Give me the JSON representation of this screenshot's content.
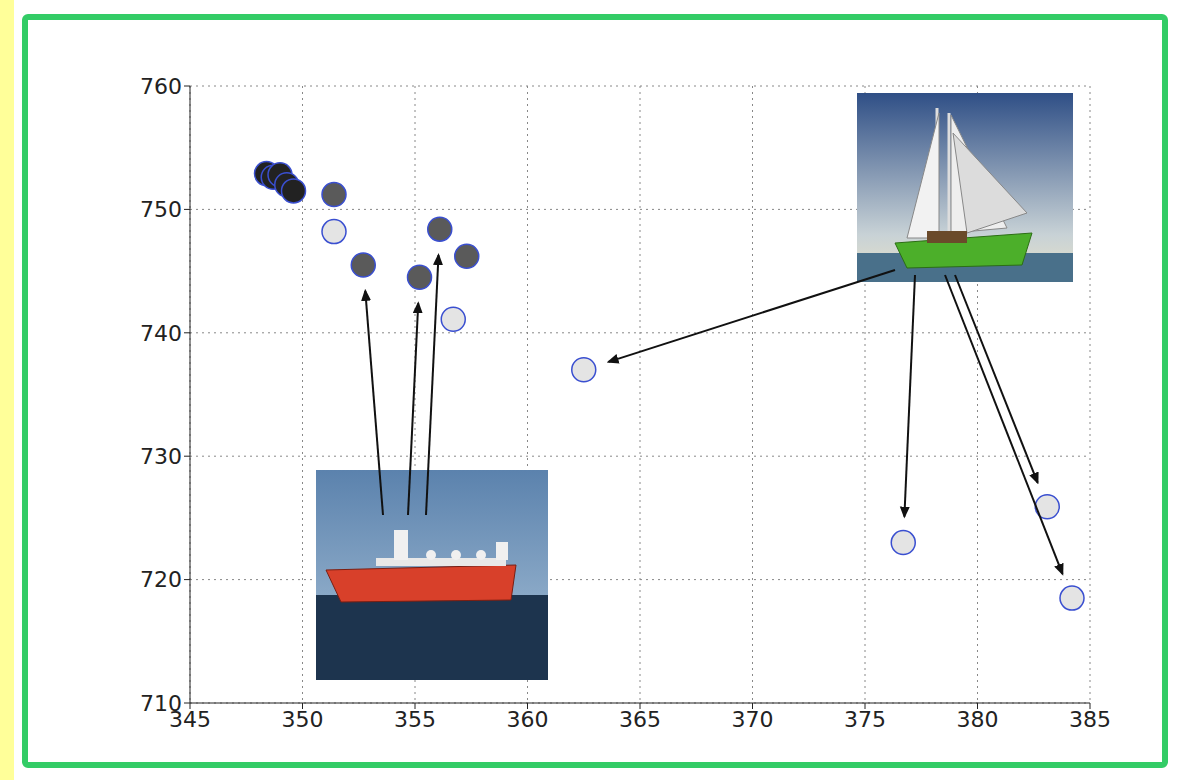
{
  "chart_data": {
    "type": "scatter",
    "xlim": [
      345,
      385
    ],
    "xticks": [
      345,
      350,
      355,
      360,
      365,
      370,
      375,
      380,
      385
    ],
    "ylim": [
      710,
      760
    ],
    "yticks": [
      710,
      720,
      730,
      740,
      750,
      760
    ],
    "grid": true,
    "series": [
      {
        "color": "#222222",
        "marker": "circle",
        "x": [
          348.4,
          348.7,
          349.0,
          349.3,
          349.6
        ],
        "values": [
          752.9,
          752.6,
          752.8,
          752.0,
          751.5
        ]
      },
      {
        "color": "#e4e4e4",
        "marker": "circle",
        "x": [
          351.4,
          356.7,
          362.5,
          376.7,
          383.1,
          384.2
        ],
        "values": [
          748.2,
          741.1,
          737.0,
          723.0,
          725.9,
          718.5
        ]
      },
      {
        "color": "#5a5a5a",
        "marker": "circle",
        "x": [
          351.4,
          352.7,
          355.2,
          356.1,
          357.3
        ],
        "values": [
          751.2,
          745.5,
          744.5,
          748.4,
          746.2
        ]
      }
    ]
  }
}
